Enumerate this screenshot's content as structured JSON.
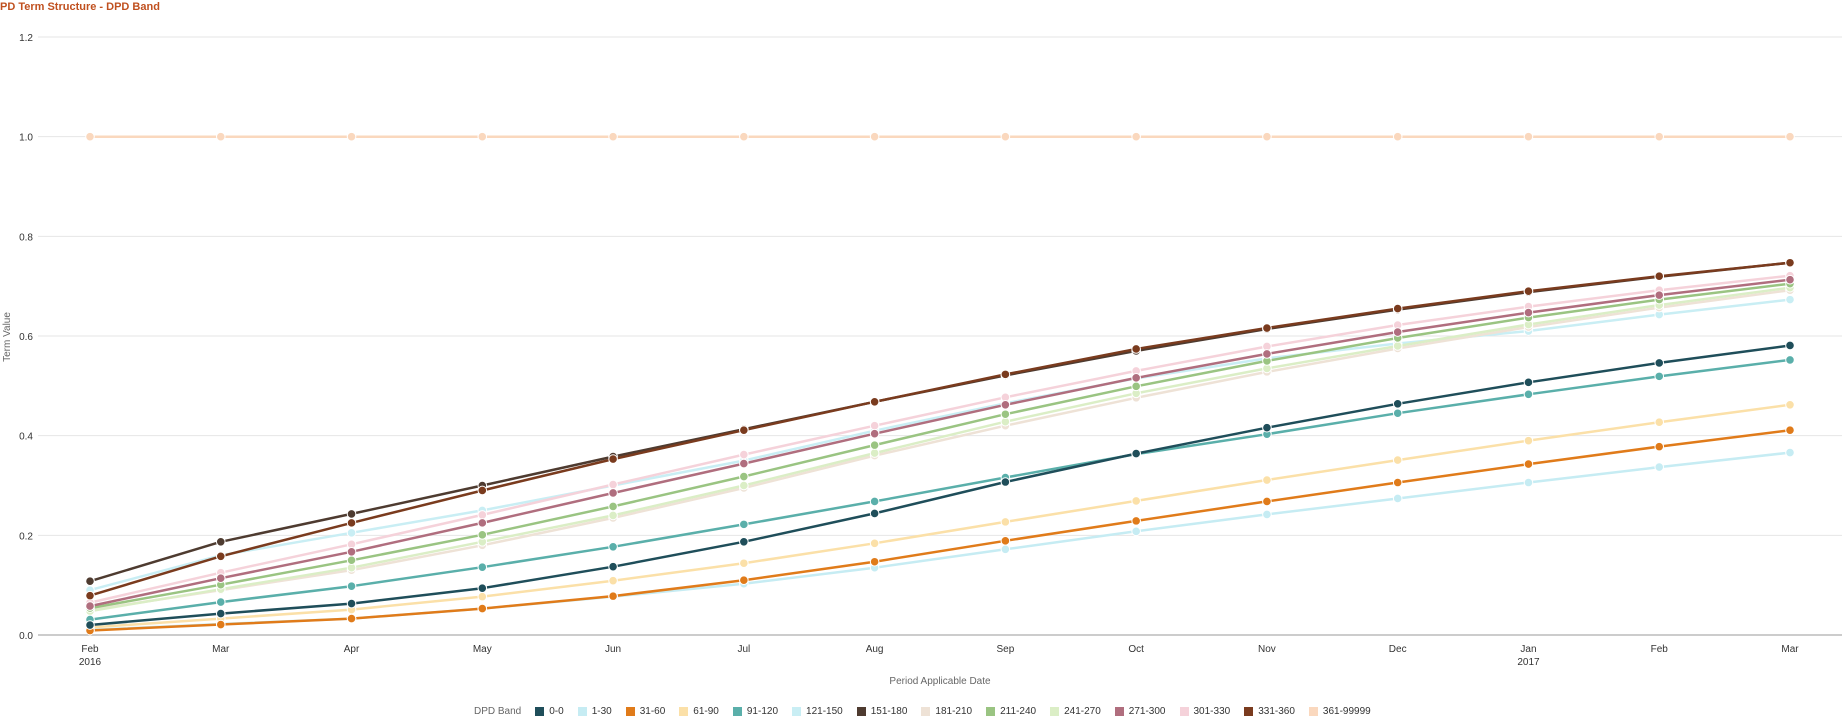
{
  "chart_data": {
    "type": "line",
    "title": "PD Term Structure - DPD Band",
    "xlabel": "Period Applicable Date",
    "ylabel": "Term Value",
    "ylim": [
      0,
      1.2
    ],
    "yticks": [
      "0.0",
      "0.2",
      "0.4",
      "0.6",
      "0.8",
      "1.0",
      "1.2"
    ],
    "grid": true,
    "legend_title": "DPD Band",
    "legend_position": "bottom",
    "categories": [
      "Feb 2016",
      "Mar 2016",
      "Apr 2016",
      "May 2016",
      "Jun 2016",
      "Jul 2016",
      "Aug 2016",
      "Sep 2016",
      "Oct 2016",
      "Nov 2016",
      "Dec 2016",
      "Jan 2017",
      "Feb 2017",
      "Mar 2017"
    ],
    "x_tick_labels": [
      {
        "month": "Feb",
        "year": "2016"
      },
      {
        "month": "Mar",
        "year": ""
      },
      {
        "month": "Apr",
        "year": ""
      },
      {
        "month": "May",
        "year": ""
      },
      {
        "month": "Jun",
        "year": ""
      },
      {
        "month": "Jul",
        "year": ""
      },
      {
        "month": "Aug",
        "year": ""
      },
      {
        "month": "Sep",
        "year": ""
      },
      {
        "month": "Oct",
        "year": ""
      },
      {
        "month": "Nov",
        "year": ""
      },
      {
        "month": "Dec",
        "year": ""
      },
      {
        "month": "Jan",
        "year": "2017"
      },
      {
        "month": "Feb",
        "year": ""
      },
      {
        "month": "Mar",
        "year": ""
      }
    ],
    "series": [
      {
        "name": "0-0",
        "color": "#1f4e5a",
        "values": [
          0.02,
          0.043,
          0.063,
          0.094,
          0.137,
          0.187,
          0.244,
          0.307,
          0.364,
          0.416,
          0.464,
          0.507,
          0.546,
          0.581
        ]
      },
      {
        "name": "1-30",
        "color": "#c6ecf3",
        "values": [
          0.01,
          0.022,
          0.033,
          0.053,
          0.077,
          0.103,
          0.135,
          0.172,
          0.208,
          0.242,
          0.274,
          0.306,
          0.337,
          0.366
        ]
      },
      {
        "name": "31-60",
        "color": "#e07b1a",
        "values": [
          0.009,
          0.021,
          0.033,
          0.053,
          0.078,
          0.11,
          0.147,
          0.189,
          0.229,
          0.268,
          0.306,
          0.343,
          0.378,
          0.411
        ]
      },
      {
        "name": "61-90",
        "color": "#fbe0a8",
        "values": [
          0.015,
          0.033,
          0.051,
          0.077,
          0.109,
          0.144,
          0.184,
          0.227,
          0.269,
          0.311,
          0.351,
          0.39,
          0.427,
          0.462
        ]
      },
      {
        "name": "91-120",
        "color": "#5aafaa",
        "values": [
          0.031,
          0.066,
          0.098,
          0.136,
          0.177,
          0.222,
          0.268,
          0.316,
          0.363,
          0.403,
          0.445,
          0.483,
          0.519,
          0.552
        ]
      },
      {
        "name": "121-150",
        "color": "#c9eef4",
        "values": [
          0.09,
          0.16,
          0.205,
          0.25,
          0.3,
          0.35,
          0.41,
          0.465,
          0.515,
          0.555,
          0.585,
          0.61,
          0.643,
          0.673
        ]
      },
      {
        "name": "151-180",
        "color": "#4e3b30",
        "values": [
          0.108,
          0.187,
          0.243,
          0.3,
          0.358,
          0.413,
          0.468,
          0.521,
          0.57,
          0.614,
          0.653,
          0.688,
          0.719,
          0.747
        ]
      },
      {
        "name": "181-210",
        "color": "#eee2d6",
        "values": [
          0.05,
          0.09,
          0.13,
          0.18,
          0.235,
          0.295,
          0.36,
          0.42,
          0.476,
          0.528,
          0.575,
          0.618,
          0.657,
          0.692
        ]
      },
      {
        "name": "211-240",
        "color": "#9ac482",
        "values": [
          0.054,
          0.101,
          0.15,
          0.201,
          0.258,
          0.318,
          0.381,
          0.443,
          0.499,
          0.55,
          0.596,
          0.637,
          0.673,
          0.705
        ]
      },
      {
        "name": "241-270",
        "color": "#dbeec6",
        "values": [
          0.048,
          0.092,
          0.135,
          0.187,
          0.24,
          0.3,
          0.365,
          0.428,
          0.485,
          0.535,
          0.58,
          0.623,
          0.662,
          0.697
        ]
      },
      {
        "name": "271-300",
        "color": "#b06e7e",
        "values": [
          0.058,
          0.114,
          0.167,
          0.225,
          0.285,
          0.344,
          0.404,
          0.462,
          0.516,
          0.564,
          0.608,
          0.647,
          0.682,
          0.713
        ]
      },
      {
        "name": "301-330",
        "color": "#f5d2da",
        "values": [
          0.065,
          0.125,
          0.182,
          0.241,
          0.302,
          0.362,
          0.42,
          0.477,
          0.53,
          0.579,
          0.622,
          0.659,
          0.692,
          0.721
        ]
      },
      {
        "name": "331-360",
        "color": "#7a3b1e",
        "values": [
          0.079,
          0.158,
          0.225,
          0.29,
          0.353,
          0.411,
          0.468,
          0.523,
          0.574,
          0.616,
          0.655,
          0.69,
          0.72,
          0.747
        ]
      },
      {
        "name": "361-99999",
        "color": "#fad8be",
        "values": [
          1.0,
          1.0,
          1.0,
          1.0,
          1.0,
          1.0,
          1.0,
          1.0,
          1.0,
          1.0,
          1.0,
          1.0,
          1.0,
          1.0
        ]
      }
    ]
  }
}
